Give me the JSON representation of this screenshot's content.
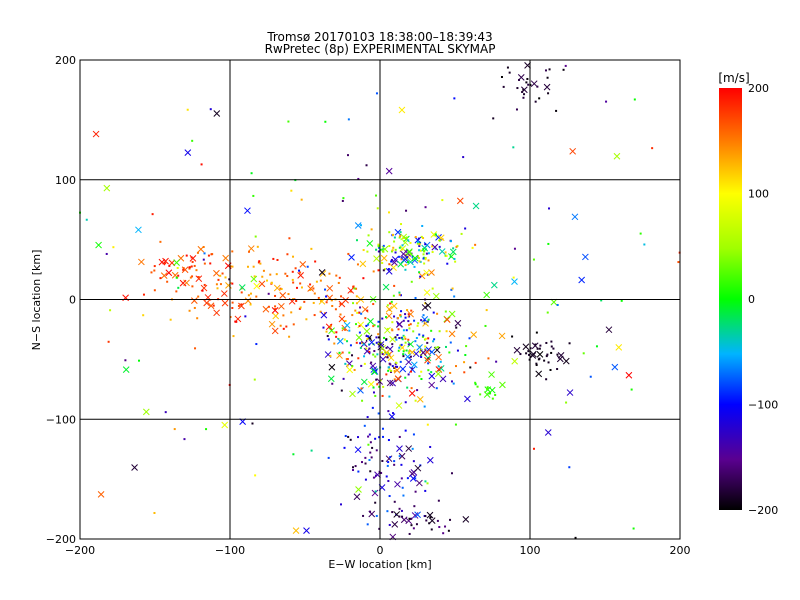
{
  "chart_data": {
    "type": "scatter",
    "title": "Tromsø 20170103 18:38:00–18:39:43",
    "subtitle": "RwPretec (8p) EXPERIMENTAL SKYMAP",
    "xlabel": "E−W location [km]",
    "ylabel": "N−S location [km]",
    "xlim": [
      -200,
      200
    ],
    "ylim": [
      -200,
      200
    ],
    "xticks": [
      -200,
      -100,
      0,
      100,
      200
    ],
    "yticks": [
      -200,
      -100,
      0,
      100,
      200
    ],
    "xtick_labels": [
      "−200",
      "−100",
      "0",
      "100",
      "200"
    ],
    "ytick_labels": [
      "−200",
      "−100",
      "0",
      "100",
      "200"
    ],
    "grid": true,
    "colorbar": {
      "label": "[m/s]",
      "min": -200,
      "max": 200,
      "ticks": [
        200,
        100,
        0,
        -100,
        -200
      ],
      "tick_labels": [
        "200",
        "100",
        "0",
        "−100",
        "−200"
      ],
      "colormap": "rainbow-black-to-red"
    },
    "clusters": [
      {
        "x": 20,
        "y": 40,
        "sx": 14,
        "sy": 8,
        "n": 140,
        "vel": [
          -150,
          150
        ]
      },
      {
        "x": 10,
        "y": -40,
        "sx": 22,
        "sy": 20,
        "n": 320,
        "vel": [
          -200,
          200
        ]
      },
      {
        "x": -60,
        "y": 5,
        "sx": 38,
        "sy": 18,
        "n": 180,
        "vel": [
          120,
          200
        ]
      },
      {
        "x": -130,
        "y": 25,
        "sx": 18,
        "sy": 10,
        "n": 50,
        "vel": [
          150,
          200
        ]
      },
      {
        "x": 100,
        "y": 180,
        "sx": 10,
        "sy": 10,
        "n": 30,
        "vel": [
          -200,
          -170
        ]
      },
      {
        "x": 105,
        "y": -45,
        "sx": 10,
        "sy": 8,
        "n": 40,
        "vel": [
          -200,
          -180
        ]
      },
      {
        "x": 5,
        "y": -140,
        "sx": 15,
        "sy": 30,
        "n": 110,
        "vel": [
          -200,
          -60
        ]
      },
      {
        "x": 70,
        "y": -75,
        "sx": 5,
        "sy": 5,
        "n": 15,
        "vel": [
          0,
          30
        ]
      },
      {
        "x": 30,
        "y": -185,
        "sx": 12,
        "sy": 8,
        "n": 25,
        "vel": [
          -200,
          -150
        ]
      },
      {
        "x": 0,
        "y": 0,
        "sx": 120,
        "sy": 110,
        "n": 220,
        "vel": [
          -200,
          200
        ]
      }
    ]
  }
}
